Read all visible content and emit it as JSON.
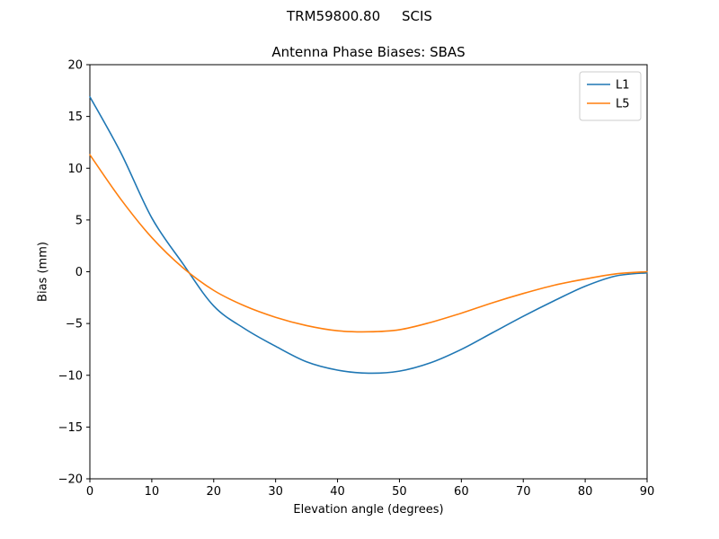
{
  "figure": {
    "suptitle": "TRM59800.80     SCIS",
    "title": "Antenna Phase Biases: SBAS",
    "xlabel": "Elevation angle (degrees)",
    "ylabel": "Bias (mm)"
  },
  "chart_data": {
    "type": "line",
    "title": "Antenna Phase Biases: SBAS",
    "suptitle": "TRM59800.80     SCIS",
    "xlabel": "Elevation angle (degrees)",
    "ylabel": "Bias (mm)",
    "xlim": [
      0,
      90
    ],
    "ylim": [
      -20,
      20
    ],
    "xticks": [
      0,
      10,
      20,
      30,
      40,
      50,
      60,
      70,
      80,
      90
    ],
    "yticks": [
      -20,
      -15,
      -10,
      -5,
      0,
      5,
      10,
      15,
      20
    ],
    "grid": false,
    "legend_position": "upper right",
    "frame_color": "#000000",
    "x": [
      0,
      5,
      10,
      15,
      20,
      25,
      30,
      35,
      40,
      45,
      50,
      55,
      60,
      65,
      70,
      75,
      80,
      85,
      90
    ],
    "series": [
      {
        "name": "L1",
        "color": "#1f77b4",
        "values": [
          16.9,
          11.5,
          5.2,
          0.8,
          -3.3,
          -5.5,
          -7.2,
          -8.7,
          -9.5,
          -9.8,
          -9.6,
          -8.8,
          -7.5,
          -5.9,
          -4.3,
          -2.8,
          -1.4,
          -0.4,
          -0.1
        ]
      },
      {
        "name": "L5",
        "color": "#ff7f0e",
        "values": [
          11.3,
          7.0,
          3.3,
          0.4,
          -1.8,
          -3.3,
          -4.4,
          -5.2,
          -5.7,
          -5.8,
          -5.6,
          -4.9,
          -4.0,
          -3.0,
          -2.1,
          -1.3,
          -0.7,
          -0.2,
          0.0
        ]
      }
    ]
  }
}
